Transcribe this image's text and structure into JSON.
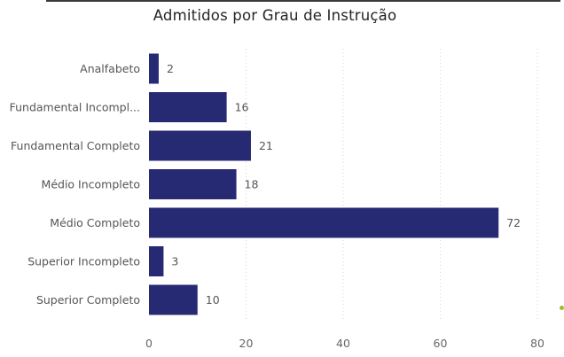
{
  "chart_data": {
    "type": "bar",
    "orientation": "horizontal",
    "title": "Admitidos por Grau de Instrução",
    "categories": [
      "Analfabeto",
      "Fundamental Incompl...",
      "Fundamental Completo",
      "Médio Incompleto",
      "Médio Completo",
      "Superior Incompleto",
      "Superior Completo"
    ],
    "values": [
      2,
      16,
      21,
      18,
      72,
      3,
      10
    ],
    "xlim": [
      0,
      80
    ],
    "xticks": [
      0,
      20,
      40,
      60,
      80
    ],
    "grid": true,
    "bar_color": "#262a73",
    "data_labels": true
  }
}
